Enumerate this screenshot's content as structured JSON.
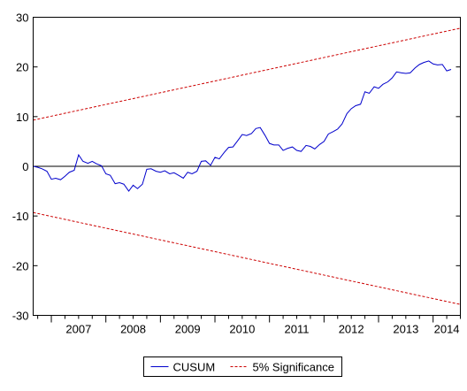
{
  "chart_data": {
    "type": "line",
    "title": "",
    "xlabel": "",
    "ylabel": "",
    "x_tick_labels": [
      "2007",
      "2008",
      "2009",
      "2010",
      "2011",
      "2012",
      "2013",
      "2014"
    ],
    "xlim": [
      2006.667,
      2014.5
    ],
    "ylim": [
      -30,
      30
    ],
    "y_ticks": [
      30,
      20,
      10,
      0,
      -10,
      -20,
      -30
    ],
    "y_tick_labels": [
      "30",
      "20",
      "10",
      "0",
      "-10",
      "-20",
      "-30"
    ],
    "grid": false,
    "zero_line": true,
    "legend_position": "bottom-center",
    "series": [
      {
        "name": "CUSUM",
        "color": "#0000cc",
        "style": "solid",
        "points": [
          [
            2006.67,
            0.0
          ],
          [
            2006.75,
            -0.2
          ],
          [
            2006.83,
            -0.5
          ],
          [
            2006.92,
            -1.0
          ],
          [
            2007.0,
            -2.6
          ],
          [
            2007.08,
            -2.4
          ],
          [
            2007.17,
            -2.7
          ],
          [
            2007.25,
            -2.0
          ],
          [
            2007.33,
            -1.2
          ],
          [
            2007.42,
            -0.8
          ],
          [
            2007.5,
            2.3
          ],
          [
            2007.58,
            1.0
          ],
          [
            2007.67,
            0.6
          ],
          [
            2007.75,
            1.0
          ],
          [
            2007.83,
            0.5
          ],
          [
            2007.92,
            0.1
          ],
          [
            2008.0,
            -1.5
          ],
          [
            2008.08,
            -1.8
          ],
          [
            2008.17,
            -3.5
          ],
          [
            2008.25,
            -3.3
          ],
          [
            2008.33,
            -3.6
          ],
          [
            2008.42,
            -5.0
          ],
          [
            2008.5,
            -3.8
          ],
          [
            2008.58,
            -4.5
          ],
          [
            2008.67,
            -3.6
          ],
          [
            2008.75,
            -0.6
          ],
          [
            2008.83,
            -0.5
          ],
          [
            2008.92,
            -1.0
          ],
          [
            2009.0,
            -1.2
          ],
          [
            2009.08,
            -0.9
          ],
          [
            2009.17,
            -1.5
          ],
          [
            2009.25,
            -1.3
          ],
          [
            2009.33,
            -1.8
          ],
          [
            2009.42,
            -2.4
          ],
          [
            2009.5,
            -1.2
          ],
          [
            2009.58,
            -1.5
          ],
          [
            2009.67,
            -1.0
          ],
          [
            2009.75,
            1.0
          ],
          [
            2009.83,
            1.1
          ],
          [
            2009.92,
            0.2
          ],
          [
            2010.0,
            1.8
          ],
          [
            2010.08,
            1.5
          ],
          [
            2010.17,
            2.8
          ],
          [
            2010.25,
            3.8
          ],
          [
            2010.33,
            3.9
          ],
          [
            2010.42,
            5.2
          ],
          [
            2010.5,
            6.4
          ],
          [
            2010.58,
            6.2
          ],
          [
            2010.67,
            6.6
          ],
          [
            2010.75,
            7.6
          ],
          [
            2010.83,
            7.8
          ],
          [
            2010.92,
            6.2
          ],
          [
            2011.0,
            4.6
          ],
          [
            2011.08,
            4.3
          ],
          [
            2011.17,
            4.3
          ],
          [
            2011.25,
            3.2
          ],
          [
            2011.33,
            3.6
          ],
          [
            2011.42,
            3.9
          ],
          [
            2011.5,
            3.2
          ],
          [
            2011.58,
            3.0
          ],
          [
            2011.67,
            4.2
          ],
          [
            2011.75,
            4.0
          ],
          [
            2011.83,
            3.5
          ],
          [
            2011.92,
            4.4
          ],
          [
            2012.0,
            5.0
          ],
          [
            2012.08,
            6.5
          ],
          [
            2012.17,
            7.0
          ],
          [
            2012.25,
            7.5
          ],
          [
            2012.33,
            8.5
          ],
          [
            2012.42,
            10.6
          ],
          [
            2012.5,
            11.6
          ],
          [
            2012.58,
            12.2
          ],
          [
            2012.67,
            12.5
          ],
          [
            2012.75,
            15.0
          ],
          [
            2012.83,
            14.7
          ],
          [
            2012.92,
            16.0
          ],
          [
            2013.0,
            15.7
          ],
          [
            2013.08,
            16.5
          ],
          [
            2013.17,
            17.0
          ],
          [
            2013.25,
            17.8
          ],
          [
            2013.33,
            19.0
          ],
          [
            2013.42,
            18.8
          ],
          [
            2013.5,
            18.7
          ],
          [
            2013.58,
            18.8
          ],
          [
            2013.67,
            19.8
          ],
          [
            2013.75,
            20.5
          ],
          [
            2013.83,
            20.9
          ],
          [
            2013.92,
            21.2
          ],
          [
            2014.0,
            20.6
          ],
          [
            2014.08,
            20.4
          ],
          [
            2014.17,
            20.5
          ],
          [
            2014.25,
            19.2
          ],
          [
            2014.33,
            19.5
          ]
        ]
      },
      {
        "name": "5% Significance",
        "color": "#cc0000",
        "style": "dashed",
        "points": [
          [
            2006.667,
            9.3
          ],
          [
            2014.5,
            27.8
          ]
        ]
      },
      {
        "name": "5% Significance",
        "color": "#cc0000",
        "style": "dashed",
        "points": [
          [
            2006.667,
            -9.3
          ],
          [
            2014.5,
            -27.8
          ]
        ]
      }
    ]
  },
  "legend": [
    {
      "label": "CUSUM",
      "color": "#0000cc",
      "style": "solid"
    },
    {
      "label": "5% Significance",
      "color": "#cc0000",
      "style": "dashed"
    }
  ]
}
